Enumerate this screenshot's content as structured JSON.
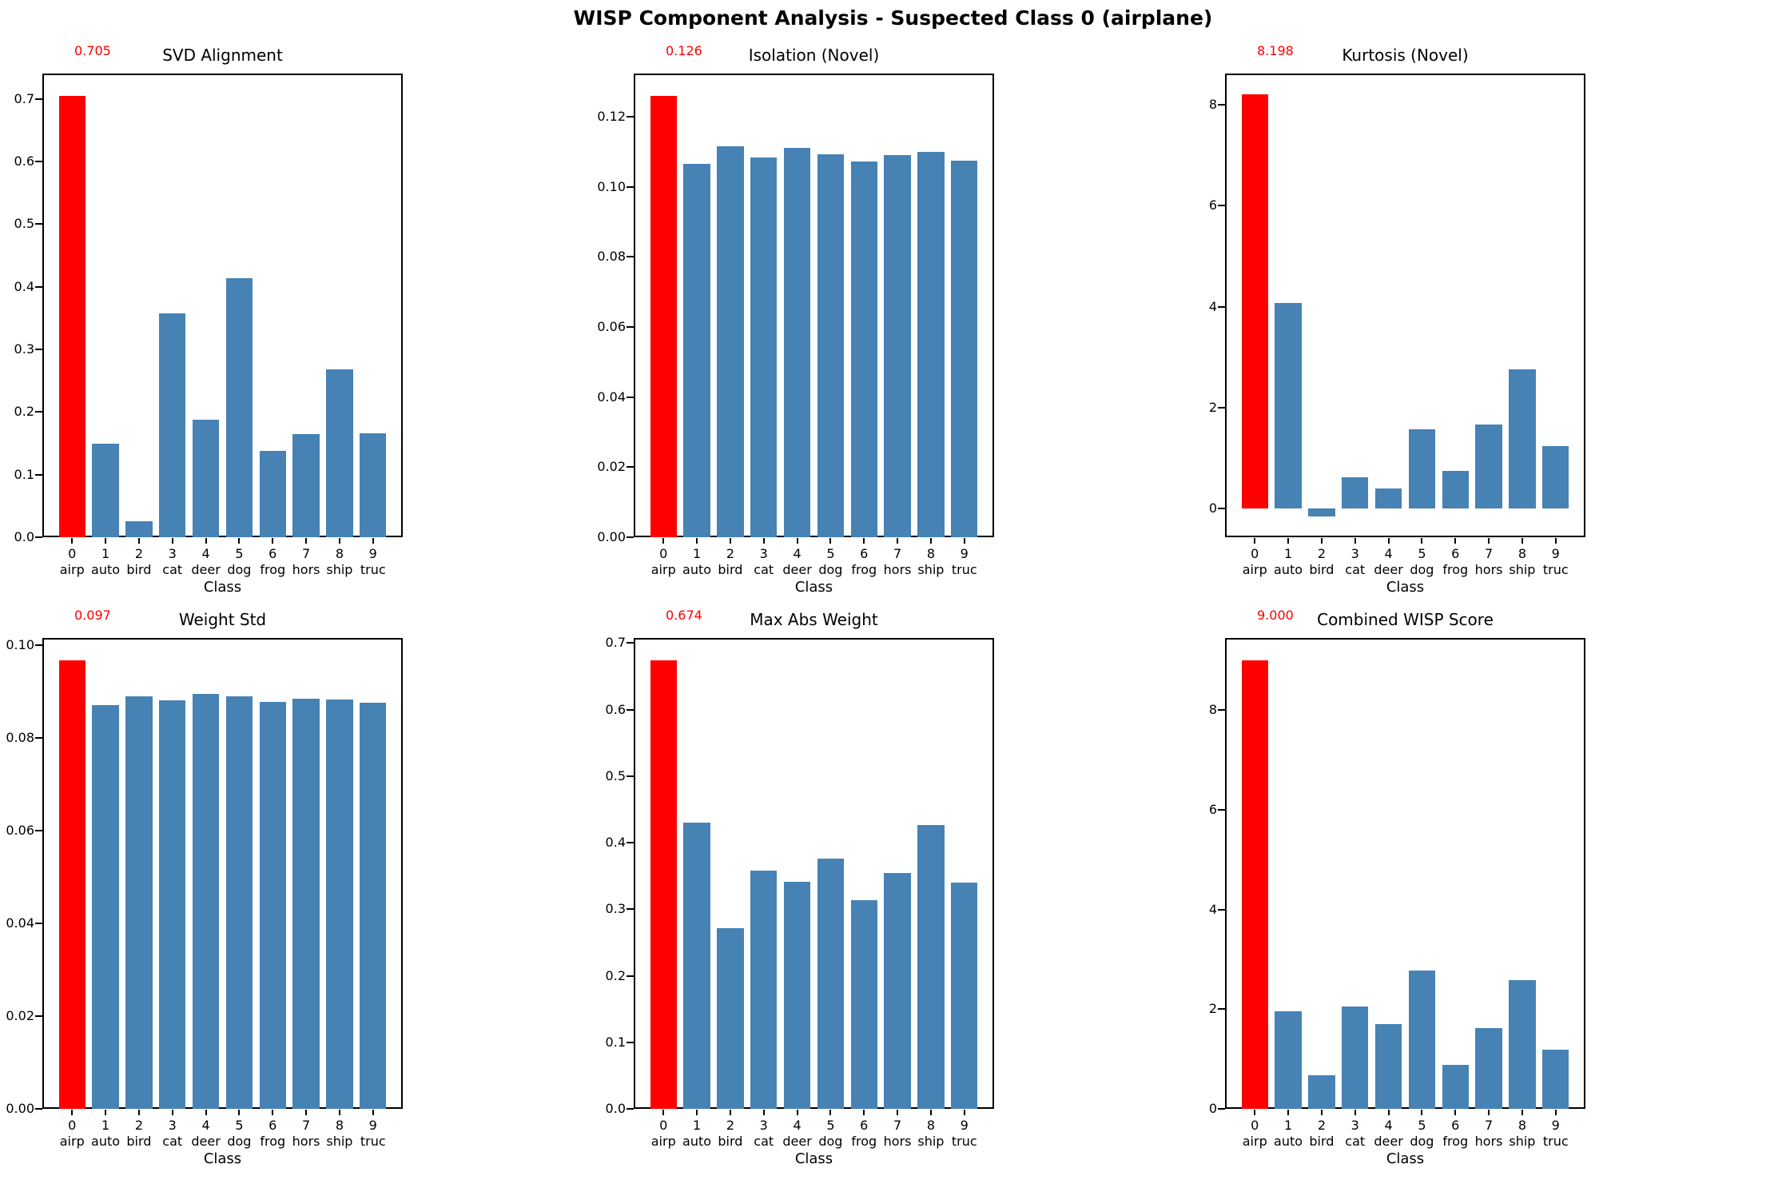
{
  "title": "WISP Component Analysis - Suspected Class 0 (airplane)",
  "colors": {
    "suspected_bar": "#ff0000",
    "normal_bar": "#4682b4",
    "annotation_text": "#ff0000",
    "axis_text": "#000000",
    "background": "#ffffff"
  },
  "chart_data": {
    "type": "bar",
    "layout": "2x3-grid",
    "xlabel": "Class",
    "categories": {
      "nums": [
        "0",
        "1",
        "2",
        "3",
        "4",
        "5",
        "6",
        "7",
        "8",
        "9"
      ],
      "names": [
        "airp",
        "auto",
        "bird",
        "cat",
        "deer",
        "dog",
        "frog",
        "hors",
        "ship",
        "truc"
      ]
    },
    "highlighted_index": 0,
    "charts": [
      {
        "key": "svd-alignment",
        "title": "SVD Alignment",
        "annotation": "0.705",
        "values": [
          0.705,
          0.149,
          0.026,
          0.357,
          0.187,
          0.414,
          0.138,
          0.165,
          0.268,
          0.166
        ],
        "ylim": [
          0,
          0.7403
        ],
        "ytick_values": [
          0.0,
          0.1,
          0.2,
          0.3,
          0.4,
          0.5,
          0.6,
          0.7
        ],
        "ytick_labels": [
          "0.0",
          "0.1",
          "0.2",
          "0.3",
          "0.4",
          "0.5",
          "0.6",
          "0.7"
        ]
      },
      {
        "key": "isolation-novel",
        "title": "Isolation (Novel)",
        "annotation": "0.126",
        "values": [
          0.126,
          0.1065,
          0.1115,
          0.1083,
          0.1112,
          0.1093,
          0.1072,
          0.109,
          0.11,
          0.1075
        ],
        "ylim": [
          0,
          0.1323
        ],
        "ytick_values": [
          0.0,
          0.02,
          0.04,
          0.06,
          0.08,
          0.1,
          0.12
        ],
        "ytick_labels": [
          "0.00",
          "0.02",
          "0.04",
          "0.06",
          "0.08",
          "0.10",
          "0.12"
        ]
      },
      {
        "key": "kurtosis-novel",
        "title": "Kurtosis (Novel)",
        "annotation": "8.198",
        "values": [
          8.198,
          4.07,
          -0.15,
          0.62,
          0.4,
          1.57,
          0.74,
          1.66,
          2.75,
          1.23
        ],
        "ylim": [
          -0.567,
          8.615
        ],
        "ytick_values": [
          0,
          2,
          4,
          6,
          8
        ],
        "ytick_labels": [
          "0",
          "2",
          "4",
          "6",
          "8"
        ]
      },
      {
        "key": "weight-std",
        "title": "Weight Std",
        "annotation": "0.097",
        "values": [
          0.0967,
          0.0871,
          0.089,
          0.0881,
          0.0894,
          0.0889,
          0.0878,
          0.0884,
          0.0882,
          0.0876
        ],
        "ylim": [
          0,
          0.1015
        ],
        "ytick_values": [
          0.0,
          0.02,
          0.04,
          0.06,
          0.08,
          0.1
        ],
        "ytick_labels": [
          "0.00",
          "0.02",
          "0.04",
          "0.06",
          "0.08",
          "0.10"
        ]
      },
      {
        "key": "max-abs-weight",
        "title": "Max Abs Weight",
        "annotation": "0.674",
        "values": [
          0.674,
          0.43,
          0.271,
          0.358,
          0.341,
          0.376,
          0.314,
          0.355,
          0.427,
          0.34
        ],
        "ylim": [
          0,
          0.7077
        ],
        "ytick_values": [
          0.0,
          0.1,
          0.2,
          0.3,
          0.4,
          0.5,
          0.6,
          0.7
        ],
        "ytick_labels": [
          "0.0",
          "0.1",
          "0.2",
          "0.3",
          "0.4",
          "0.5",
          "0.6",
          "0.7"
        ]
      },
      {
        "key": "combined-wisp-score",
        "title": "Combined WISP Score",
        "annotation": "9.000",
        "values": [
          9.0,
          1.95,
          0.68,
          2.05,
          1.7,
          2.78,
          0.88,
          1.62,
          2.58,
          1.18
        ],
        "ylim": [
          0,
          9.45
        ],
        "ytick_values": [
          0,
          2,
          4,
          6,
          8
        ],
        "ytick_labels": [
          "0",
          "2",
          "4",
          "6",
          "8"
        ]
      }
    ]
  }
}
